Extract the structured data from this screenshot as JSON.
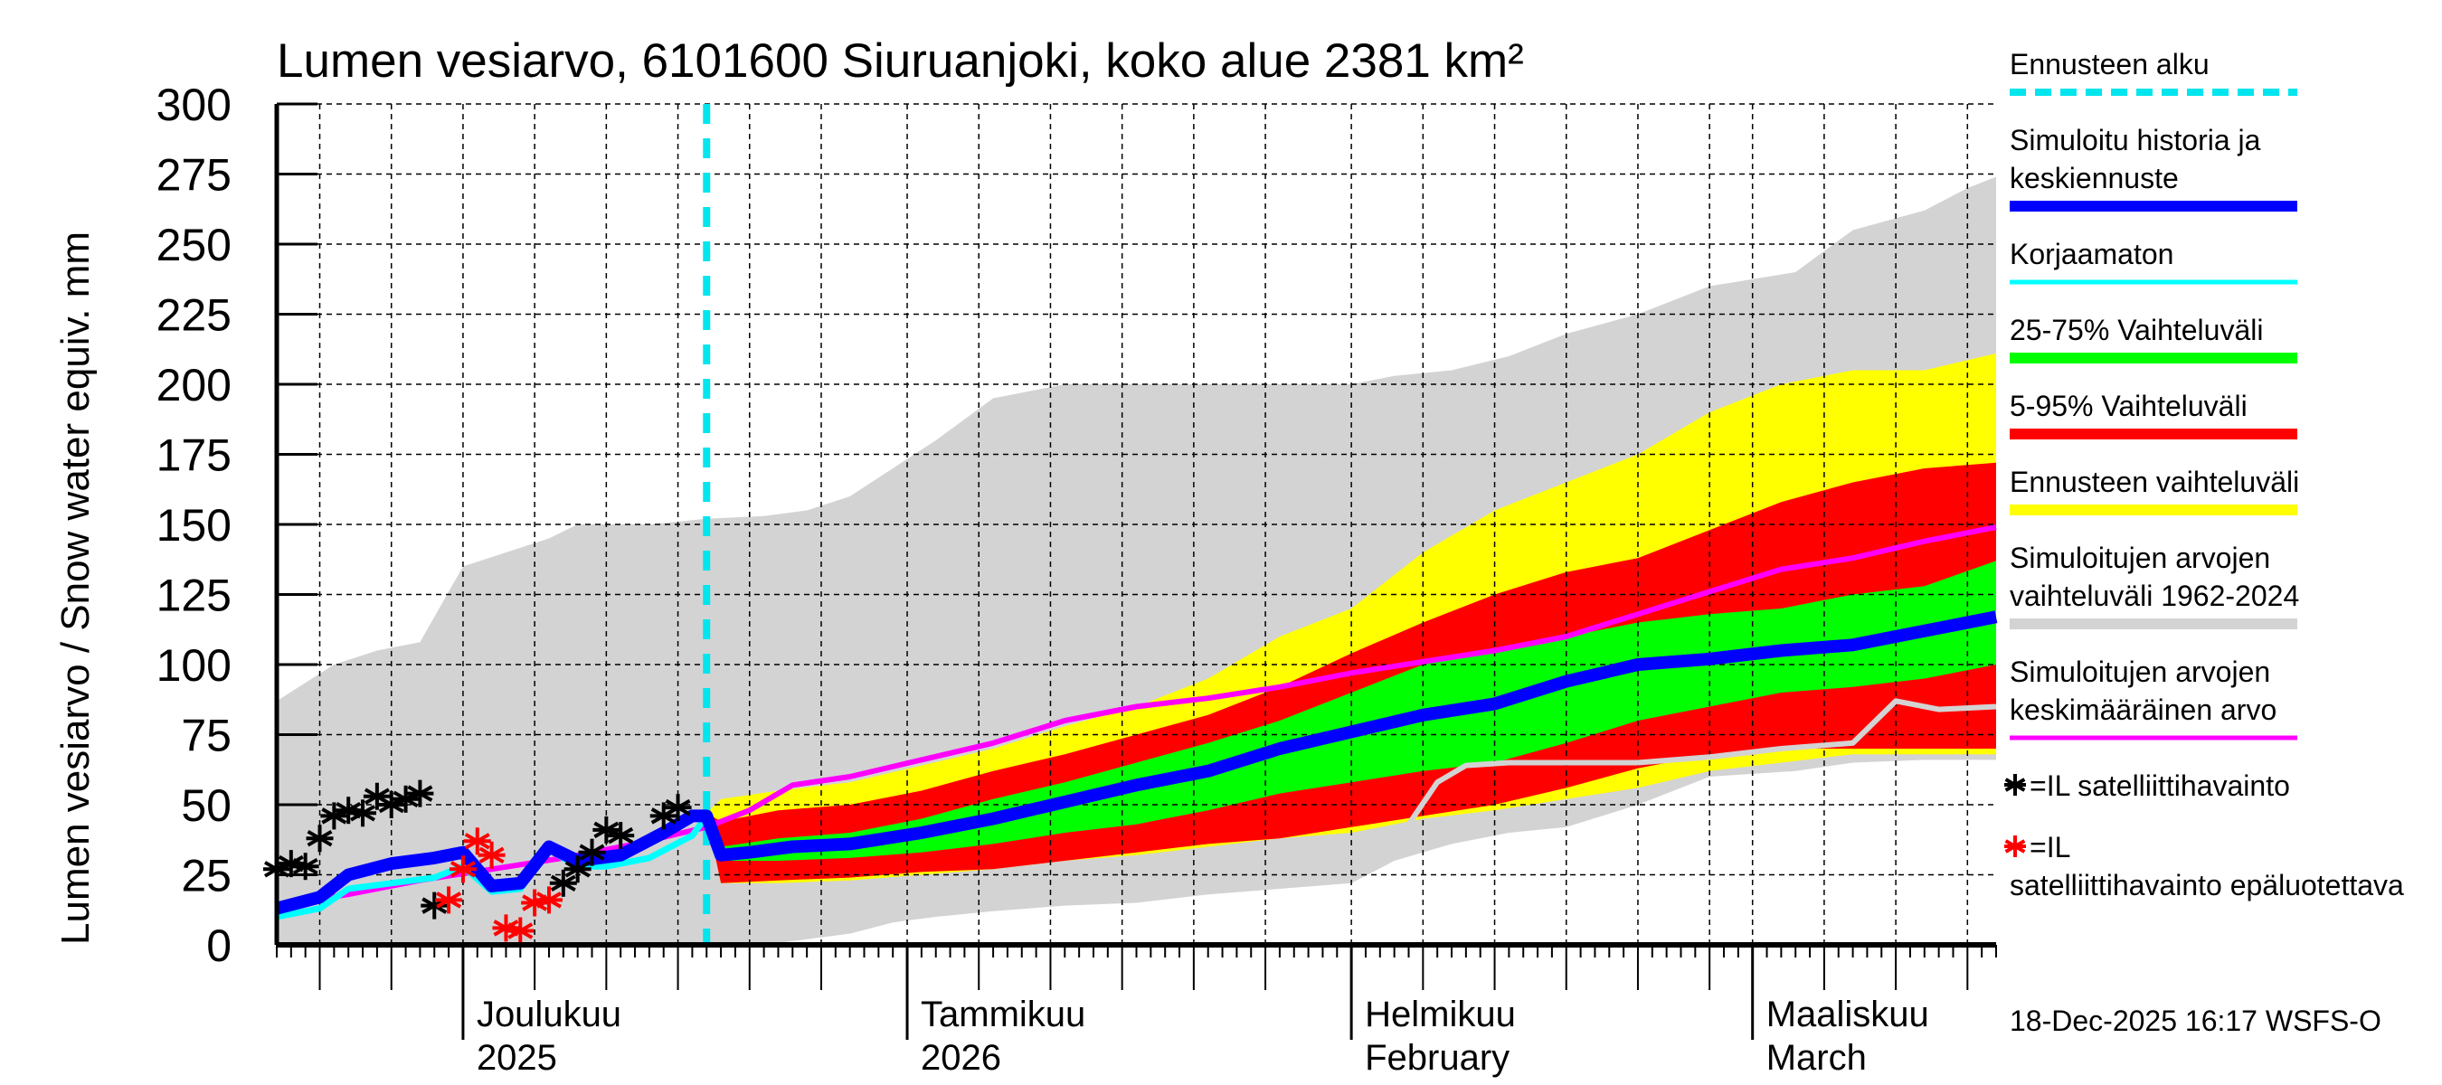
{
  "chart_data": {
    "type": "area",
    "title": "Lumen vesiarvo, 6101600 Siuruanjoki, koko alue 2381 km²",
    "ylabel": "Lumen vesiarvo / Snow water equiv.    mm",
    "xlabel": "",
    "ylim": [
      0,
      300
    ],
    "yticks": [
      0,
      25,
      50,
      75,
      100,
      125,
      150,
      175,
      200,
      225,
      250,
      275,
      300
    ],
    "x_start": "2025-11-18",
    "x_end": "2026-03-18",
    "forecast_start": "2025-12-18",
    "grid": true,
    "month_labels": [
      {
        "date": "2025-12-01",
        "line1": "Joulukuu",
        "line2": "2025"
      },
      {
        "date": "2026-01-01",
        "line1": "Tammikuu",
        "line2": "2026"
      },
      {
        "date": "2026-02-01",
        "line1": "Helmikuu",
        "line2": "February"
      },
      {
        "date": "2026-03-01",
        "line1": "Maaliskuu",
        "line2": "March"
      }
    ],
    "legend_position": "right",
    "legend": [
      {
        "label": "Ennusteen alku",
        "color": "#00e5ee",
        "style": "dashed"
      },
      {
        "label": "Simuloitu historia ja keskiennuste",
        "color": "#0000ff",
        "style": "thick"
      },
      {
        "label": "Korjaamaton",
        "color": "#00ffff",
        "style": "line"
      },
      {
        "label": "25-75% Vaihteluväli",
        "color": "#00ff00",
        "style": "band"
      },
      {
        "label": "5-95% Vaihteluväli",
        "color": "#ff0000",
        "style": "band"
      },
      {
        "label": "Ennusteen vaihteluväli",
        "color": "#ffff00",
        "style": "band"
      },
      {
        "label": "Simuloitujen arvojen vaihteluväli 1962-2024",
        "color": "#d3d3d3",
        "style": "band"
      },
      {
        "label": "Simuloitujen arvojen keskimääräinen arvo",
        "color": "#ff00ff",
        "style": "line"
      },
      {
        "label": "=IL satelliittihavainto",
        "color": "#000000",
        "style": "star"
      },
      {
        "label": "=IL satelliittihavainto epäluotettava",
        "color": "#ff0000",
        "style": "star"
      }
    ],
    "series": [
      {
        "name": "Simuloitujen arvojen vaihteluväli 1962-2024",
        "kind": "band",
        "color": "#d3d3d3",
        "x": [
          0,
          4,
          7,
          10,
          13,
          16,
          19,
          21,
          23,
          26,
          30,
          34,
          37,
          40,
          43,
          46,
          50,
          55,
          60,
          65,
          70,
          75,
          78,
          82,
          86,
          90,
          95,
          100,
          106,
          110,
          115,
          118,
          120
        ],
        "lower": [
          0,
          0,
          0,
          0,
          0,
          0,
          0,
          0,
          0,
          0,
          0,
          0,
          2,
          4,
          8,
          10,
          12,
          14,
          15,
          18,
          20,
          22,
          30,
          36,
          40,
          42,
          50,
          60,
          62,
          65,
          66,
          66,
          66
        ],
        "upper": [
          87,
          100,
          105,
          108,
          135,
          140,
          145,
          150,
          150,
          150,
          152,
          153,
          155,
          160,
          170,
          180,
          195,
          200,
          200,
          200,
          200,
          200,
          203,
          205,
          210,
          218,
          225,
          235,
          240,
          255,
          262,
          270,
          274
        ]
      },
      {
        "name": "Ennusteen vaihteluväli",
        "kind": "band",
        "color": "#ffff00",
        "x": [
          30,
          31,
          35,
          40,
          45,
          50,
          55,
          60,
          65,
          70,
          75,
          80,
          85,
          90,
          95,
          100,
          105,
          110,
          115,
          120
        ],
        "lower": [
          46,
          22,
          22,
          23,
          25,
          27,
          30,
          32,
          35,
          38,
          40,
          45,
          48,
          52,
          56,
          62,
          65,
          68,
          68,
          68
        ],
        "upper": [
          47,
          52,
          55,
          58,
          64,
          70,
          78,
          85,
          95,
          110,
          120,
          140,
          155,
          165,
          175,
          190,
          200,
          205,
          205,
          211
        ]
      },
      {
        "name": "5-95% Vaihteluväli",
        "kind": "band",
        "color": "#ff0000",
        "x": [
          30,
          31,
          35,
          40,
          45,
          50,
          55,
          60,
          65,
          70,
          75,
          80,
          85,
          90,
          95,
          100,
          105,
          110,
          115,
          120
        ],
        "lower": [
          46,
          22,
          23,
          24,
          26,
          27,
          30,
          33,
          36,
          38,
          42,
          46,
          50,
          56,
          63,
          68,
          70,
          70,
          70,
          70
        ],
        "upper": [
          47,
          44,
          48,
          50,
          55,
          62,
          68,
          75,
          82,
          92,
          104,
          115,
          125,
          133,
          138,
          148,
          158,
          165,
          170,
          172
        ]
      },
      {
        "name": "25-75% Vaihteluväli",
        "kind": "band",
        "color": "#00ff00",
        "x": [
          30,
          31,
          35,
          40,
          45,
          50,
          55,
          60,
          65,
          70,
          75,
          80,
          85,
          90,
          95,
          100,
          105,
          110,
          115,
          120
        ],
        "lower": [
          46,
          30,
          30,
          31,
          33,
          36,
          40,
          43,
          48,
          54,
          58,
          62,
          65,
          72,
          80,
          85,
          90,
          92,
          95,
          100
        ],
        "upper": [
          47,
          35,
          38,
          40,
          45,
          52,
          58,
          65,
          72,
          80,
          90,
          100,
          105,
          110,
          115,
          118,
          120,
          125,
          128,
          137
        ]
      },
      {
        "name": "Simuloitujen arvojen keskimääräinen arvo",
        "kind": "line",
        "color": "#ff00ff",
        "x": [
          0,
          5,
          10,
          15,
          20,
          25,
          30,
          33,
          36,
          40,
          45,
          50,
          55,
          60,
          65,
          70,
          75,
          80,
          85,
          90,
          95,
          100,
          105,
          110,
          115,
          120
        ],
        "y": [
          14,
          18,
          23,
          27,
          31,
          36,
          42,
          48,
          57,
          60,
          66,
          72,
          80,
          85,
          88,
          92,
          97,
          101,
          105,
          110,
          118,
          126,
          134,
          138,
          144,
          149
        ],
        "width": 6
      },
      {
        "name": "Korjaamaton",
        "kind": "line",
        "color": "#00ffff",
        "x": [
          0,
          3,
          5,
          8,
          11,
          13,
          15,
          17,
          19,
          21,
          23,
          26,
          29,
          30
        ],
        "y": [
          10,
          13,
          20,
          22,
          24,
          28,
          19,
          20,
          34,
          28,
          28,
          31,
          39,
          46
        ],
        "width": 7
      },
      {
        "name": "Simuloitu historia ja keskiennuste",
        "kind": "line",
        "color": "#0000ff",
        "x": [
          0,
          3,
          5,
          8,
          11,
          13,
          15,
          17,
          19,
          21,
          24,
          27,
          29,
          30,
          31,
          33,
          36,
          40,
          45,
          50,
          55,
          60,
          65,
          70,
          75,
          80,
          85,
          90,
          95,
          100,
          105,
          110,
          115,
          120
        ],
        "y": [
          13,
          17,
          25,
          29,
          31,
          33,
          21,
          22,
          35,
          30,
          32,
          40,
          46,
          46,
          32,
          33,
          35,
          36,
          40,
          45,
          51,
          57,
          62,
          70,
          76,
          82,
          86,
          94,
          100,
          102,
          105,
          107,
          112,
          117
        ],
        "width": 14
      },
      {
        "name": "Simuloitu (vanha) harmaa viiva",
        "kind": "line",
        "color": "#d3d3d3",
        "x": [
          79,
          81,
          83,
          86,
          90,
          95,
          100,
          105,
          110,
          113,
          116,
          120
        ],
        "y": [
          43,
          58,
          64,
          65,
          65,
          65,
          67,
          70,
          72,
          87,
          84,
          85
        ],
        "width": 6
      }
    ],
    "observations": [
      {
        "x": 0,
        "y": 27,
        "reliable": true
      },
      {
        "x": 1,
        "y": 29,
        "reliable": true
      },
      {
        "x": 2,
        "y": 28,
        "reliable": true
      },
      {
        "x": 3,
        "y": 38,
        "reliable": true
      },
      {
        "x": 4,
        "y": 46,
        "reliable": true
      },
      {
        "x": 5,
        "y": 48,
        "reliable": true
      },
      {
        "x": 6,
        "y": 47,
        "reliable": true
      },
      {
        "x": 7,
        "y": 53,
        "reliable": true
      },
      {
        "x": 8,
        "y": 50,
        "reliable": true
      },
      {
        "x": 9,
        "y": 52,
        "reliable": true
      },
      {
        "x": 10,
        "y": 54,
        "reliable": true
      },
      {
        "x": 11,
        "y": 14,
        "reliable": true
      },
      {
        "x": 12,
        "y": 16,
        "reliable": false
      },
      {
        "x": 13,
        "y": 27,
        "reliable": false
      },
      {
        "x": 14,
        "y": 37,
        "reliable": false
      },
      {
        "x": 15,
        "y": 32,
        "reliable": false
      },
      {
        "x": 16,
        "y": 6,
        "reliable": false
      },
      {
        "x": 17,
        "y": 5,
        "reliable": false
      },
      {
        "x": 18,
        "y": 15,
        "reliable": false
      },
      {
        "x": 19,
        "y": 16,
        "reliable": false
      },
      {
        "x": 20,
        "y": 22,
        "reliable": true
      },
      {
        "x": 21,
        "y": 27,
        "reliable": true
      },
      {
        "x": 22,
        "y": 33,
        "reliable": true
      },
      {
        "x": 23,
        "y": 41,
        "reliable": true
      },
      {
        "x": 24,
        "y": 39,
        "reliable": true
      },
      {
        "x": 27,
        "y": 46,
        "reliable": true
      },
      {
        "x": 28,
        "y": 49,
        "reliable": true
      }
    ]
  },
  "footer": "18-Dec-2025 16:17 WSFS-O"
}
